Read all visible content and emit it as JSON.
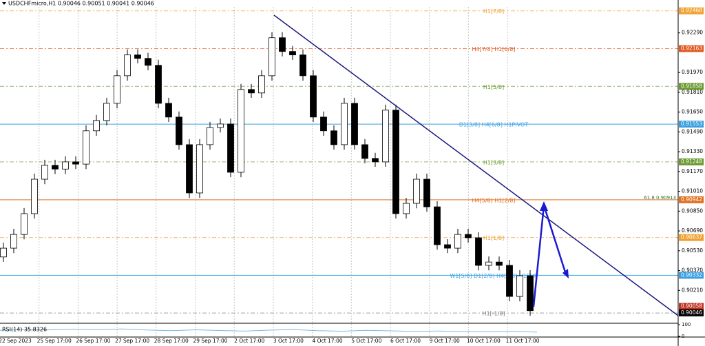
{
  "chart_data": {
    "type": "candlestick",
    "header": "USDCHFmicro,H1  0.90046 0.90051 0.90041 0.90046",
    "ylim": [
      0.8995,
      0.925
    ],
    "yticks": [
      {
        "value": 0.9229,
        "label": "0.92290"
      },
      {
        "value": 0.9197,
        "label": "0.91970"
      },
      {
        "value": 0.9181,
        "label": "0.91810"
      },
      {
        "value": 0.9165,
        "label": "0.91650"
      },
      {
        "value": 0.9149,
        "label": "0.91490"
      },
      {
        "value": 0.9133,
        "label": "0.91330"
      },
      {
        "value": 0.9117,
        "label": "0.91170"
      },
      {
        "value": 0.9101,
        "label": "0.91010"
      },
      {
        "value": 0.9085,
        "label": "0.90850"
      },
      {
        "value": 0.9069,
        "label": "0.90690"
      },
      {
        "value": 0.9053,
        "label": "0.90530"
      },
      {
        "value": 0.9037,
        "label": "0.90370"
      },
      {
        "value": 0.9021,
        "label": "0.90210"
      }
    ],
    "x_labels": [
      "22 Sep 2023",
      "25 Sep 17:00",
      "26 Sep 17:00",
      "27 Sep 17:00",
      "28 Sep 17:00",
      "29 Sep 17:00",
      "2 Oct 17:00",
      "3 Oct 17:00",
      "4 Oct 17:00",
      "5 Oct 17:00",
      "6 Oct 17:00",
      "9 Oct 17:00",
      "10 Oct 17:00",
      "11 Oct 17:00"
    ],
    "candles": {
      "open": [
        0.9048,
        0.90551,
        0.90662,
        0.9083,
        0.91108,
        0.9122,
        0.9119,
        0.91248,
        0.9123,
        0.91499,
        0.91582,
        0.91721,
        0.91944,
        0.92112,
        0.92084,
        0.92028,
        0.91721,
        0.9161,
        0.91387,
        0.90997,
        0.91387,
        0.91526,
        0.91554,
        0.91164,
        0.91833,
        0.91805,
        0.91944,
        0.92251,
        0.9214,
        0.92112,
        0.91944,
        0.9161,
        0.91499,
        0.91387,
        0.91721,
        0.91387,
        0.91276,
        0.91248,
        0.91666,
        0.9083,
        0.90913,
        0.91108,
        0.90885,
        0.90579,
        0.90551,
        0.90662,
        0.90635,
        0.90412,
        0.90439,
        0.90412,
        0.90161,
        0.90328
      ],
      "high": [
        0.90596,
        0.90707,
        0.90875,
        0.91153,
        0.91265,
        0.91265,
        0.91293,
        0.91293,
        0.91544,
        0.91627,
        0.91766,
        0.91989,
        0.92157,
        0.92157,
        0.92129,
        0.92073,
        0.91766,
        0.91655,
        0.91432,
        0.91432,
        0.91571,
        0.91599,
        0.91599,
        0.91878,
        0.91878,
        0.91989,
        0.92296,
        0.92296,
        0.92185,
        0.92157,
        0.91989,
        0.91655,
        0.91544,
        0.91766,
        0.91766,
        0.91432,
        0.91321,
        0.91711,
        0.91711,
        0.90958,
        0.91153,
        0.91153,
        0.9093,
        0.90624,
        0.90707,
        0.90707,
        0.9068,
        0.90484,
        0.90484,
        0.90457,
        0.90373,
        0.90373
      ],
      "low": [
        0.9044,
        0.90511,
        0.90622,
        0.9079,
        0.91068,
        0.9115,
        0.9115,
        0.9119,
        0.9119,
        0.91459,
        0.91542,
        0.91681,
        0.91904,
        0.92044,
        0.91988,
        0.91681,
        0.9157,
        0.91347,
        0.90957,
        0.90957,
        0.91347,
        0.91486,
        0.91124,
        0.91124,
        0.91765,
        0.91765,
        0.91904,
        0.921,
        0.92072,
        0.91904,
        0.9157,
        0.91459,
        0.91347,
        0.91347,
        0.91347,
        0.91236,
        0.91208,
        0.91208,
        0.9079,
        0.9079,
        0.90873,
        0.90845,
        0.90539,
        0.90511,
        0.90511,
        0.90595,
        0.90372,
        0.90372,
        0.90372,
        0.90121,
        0.90121,
        0.90006
      ],
      "close": [
        0.90551,
        0.90662,
        0.9083,
        0.91108,
        0.9122,
        0.9119,
        0.91248,
        0.9123,
        0.91499,
        0.91582,
        0.91721,
        0.91944,
        0.92112,
        0.92084,
        0.92028,
        0.91721,
        0.9161,
        0.91387,
        0.90997,
        0.91387,
        0.91526,
        0.91554,
        0.91164,
        0.91833,
        0.91805,
        0.91944,
        0.92251,
        0.9214,
        0.92112,
        0.91944,
        0.9161,
        0.91499,
        0.91387,
        0.91721,
        0.91387,
        0.91276,
        0.91248,
        0.91666,
        0.9083,
        0.90913,
        0.91108,
        0.90885,
        0.90579,
        0.90551,
        0.90662,
        0.90635,
        0.90412,
        0.90439,
        0.90412,
        0.90161,
        0.90328,
        0.90046
      ]
    },
    "levels": [
      {
        "label": "H1[7/8]",
        "value": 0.92468,
        "color": "#f0a030",
        "style": "dashed"
      },
      {
        "label": "H4[7/8] H1[6/8]",
        "value": 0.92163,
        "color": "#e05a20",
        "style": "dashed"
      },
      {
        "label": "H1[5/8]",
        "value": 0.91858,
        "color": "#6a9a30",
        "style": "dashed"
      },
      {
        "label": "D1[3/8] H4[6/8] H1PIVOT",
        "value": 0.91553,
        "color": "#3aa0e0",
        "style": "solid"
      },
      {
        "label": "H1[3/8]",
        "value": 0.91248,
        "color": "#6a9a30",
        "style": "dashed"
      },
      {
        "label": "H4[5/8] H1[2/8]",
        "value": 0.90942,
        "color": "#e07020",
        "style": "solid"
      },
      {
        "label": "H1[1/8]",
        "value": 0.90637,
        "color": "#f0a030",
        "style": "dashed"
      },
      {
        "label": "W1[5/8] D1[2/8] H4[4/8] H1SUP",
        "value": 0.90332,
        "color": "#3aa0e0",
        "style": "solid"
      },
      {
        "label": "H1[-1/8]",
        "value": 0.90027,
        "color": "#7a7a7a",
        "style": "dashed"
      }
    ],
    "price_markers": [
      {
        "value": 0.90058,
        "color": "#c03020"
      },
      {
        "value": 0.90046,
        "color": "#000000"
      }
    ],
    "fibo_label": "61.8  0.90913",
    "rsi": {
      "label": "RSI(14) 35.8326",
      "ylim": [
        0,
        100
      ],
      "yticks": [
        100,
        0
      ],
      "values": [
        52,
        58,
        55,
        61,
        57,
        63,
        54,
        48,
        56,
        50,
        45,
        53,
        58,
        49,
        44,
        51,
        47,
        42,
        46,
        40,
        38,
        43,
        36
      ]
    }
  }
}
